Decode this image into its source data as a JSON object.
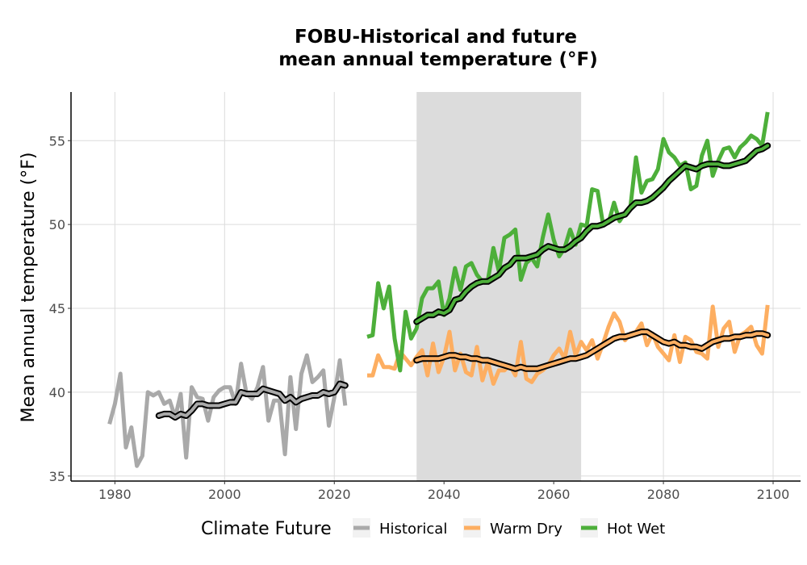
{
  "chart_data": {
    "type": "line",
    "title_lines": [
      "FOBU-Historical and future",
      "mean annual temperature (°F)"
    ],
    "xlabel": "",
    "ylabel": "Mean annual temperature (°F)",
    "xlim": [
      1972,
      2105
    ],
    "ylim": [
      34.7,
      57.9
    ],
    "xticks": [
      1980,
      2000,
      2020,
      2040,
      2060,
      2080,
      2100
    ],
    "yticks": [
      35,
      40,
      45,
      50,
      55
    ],
    "grid": true,
    "shaded_period": [
      2035,
      2065
    ],
    "legend": {
      "title": "Climate Future",
      "position": "bottom",
      "entries": [
        {
          "label": "Historical",
          "color": "#a9a9a9"
        },
        {
          "label": "Warm Dry",
          "color": "#fdae61"
        },
        {
          "label": "Hot Wet",
          "color": "#4daf3a"
        }
      ]
    },
    "series": [
      {
        "name": "Historical",
        "color": "#a9a9a9",
        "x": [
          1979,
          1980,
          1981,
          1982,
          1983,
          1984,
          1985,
          1986,
          1987,
          1988,
          1989,
          1990,
          1991,
          1992,
          1993,
          1994,
          1995,
          1996,
          1997,
          1998,
          1999,
          2000,
          2001,
          2002,
          2003,
          2004,
          2005,
          2006,
          2007,
          2008,
          2009,
          2010,
          2011,
          2012,
          2013,
          2014,
          2015,
          2016,
          2017,
          2018,
          2019,
          2020,
          2021,
          2022
        ],
        "y": [
          38.1,
          39.3,
          41.1,
          36.7,
          37.9,
          35.6,
          36.2,
          40.0,
          39.8,
          40.0,
          39.3,
          39.5,
          38.5,
          39.9,
          36.1,
          40.3,
          39.7,
          39.6,
          38.3,
          39.7,
          40.1,
          40.3,
          40.3,
          39.3,
          41.7,
          39.9,
          39.6,
          40.3,
          41.5,
          38.3,
          39.5,
          39.5,
          36.3,
          40.9,
          37.8,
          41.1,
          42.2,
          40.6,
          40.9,
          41.3,
          38.0,
          39.7,
          41.9,
          39.2
        ]
      },
      {
        "name": "Historical 10-yr average",
        "color": "#a9a9a9",
        "x": [
          1988,
          1989,
          1990,
          1991,
          1992,
          1993,
          1994,
          1995,
          1996,
          1997,
          1998,
          1999,
          2000,
          2001,
          2002,
          2003,
          2004,
          2005,
          2006,
          2007,
          2008,
          2009,
          2010,
          2011,
          2012,
          2013,
          2014,
          2015,
          2016,
          2017,
          2018,
          2019,
          2020,
          2021,
          2022
        ],
        "y": [
          38.6,
          38.7,
          38.7,
          38.5,
          38.7,
          38.6,
          38.9,
          39.3,
          39.3,
          39.2,
          39.2,
          39.2,
          39.3,
          39.4,
          39.4,
          40.0,
          39.9,
          39.9,
          39.9,
          40.2,
          40.1,
          40.0,
          39.9,
          39.5,
          39.7,
          39.4,
          39.6,
          39.7,
          39.8,
          39.8,
          40.0,
          39.9,
          40.0,
          40.5,
          40.4
        ]
      },
      {
        "name": "Warm Dry",
        "color": "#fdae61",
        "x": [
          2026,
          2027,
          2028,
          2029,
          2030,
          2031,
          2032,
          2033,
          2034,
          2035,
          2036,
          2037,
          2038,
          2039,
          2040,
          2041,
          2042,
          2043,
          2044,
          2045,
          2046,
          2047,
          2048,
          2049,
          2050,
          2051,
          2052,
          2053,
          2054,
          2055,
          2056,
          2057,
          2058,
          2059,
          2060,
          2061,
          2062,
          2063,
          2064,
          2065,
          2066,
          2067,
          2068,
          2069,
          2070,
          2071,
          2072,
          2073,
          2074,
          2075,
          2076,
          2077,
          2078,
          2079,
          2080,
          2081,
          2082,
          2083,
          2084,
          2085,
          2086,
          2087,
          2088,
          2089,
          2090,
          2091,
          2092,
          2093,
          2094,
          2095,
          2096,
          2097,
          2098,
          2099
        ],
        "y": [
          41.0,
          41.0,
          42.2,
          41.5,
          41.5,
          41.4,
          42.4,
          42.0,
          41.6,
          42.1,
          42.5,
          41.0,
          42.9,
          41.2,
          42.1,
          43.6,
          41.3,
          42.3,
          41.2,
          41.0,
          42.7,
          40.7,
          41.8,
          40.5,
          41.3,
          41.3,
          41.6,
          41.0,
          43.0,
          40.8,
          40.6,
          41.1,
          41.3,
          41.6,
          42.2,
          42.6,
          42.0,
          43.6,
          42.2,
          43.0,
          42.5,
          43.1,
          42.0,
          42.9,
          43.9,
          44.7,
          44.2,
          43.1,
          43.5,
          43.6,
          44.1,
          42.8,
          43.5,
          42.7,
          42.3,
          41.9,
          43.4,
          41.8,
          43.3,
          43.1,
          42.4,
          42.3,
          42.0,
          45.1,
          42.7,
          43.8,
          44.2,
          42.4,
          43.4,
          43.6,
          43.9,
          42.8,
          42.3,
          45.2
        ]
      },
      {
        "name": "Warm Dry 10-yr average",
        "color": "#fdae61",
        "x": [
          2035,
          2036,
          2037,
          2038,
          2039,
          2040,
          2041,
          2042,
          2043,
          2044,
          2045,
          2046,
          2047,
          2048,
          2049,
          2050,
          2051,
          2052,
          2053,
          2054,
          2055,
          2056,
          2057,
          2058,
          2059,
          2060,
          2061,
          2062,
          2063,
          2064,
          2065,
          2066,
          2067,
          2068,
          2069,
          2070,
          2071,
          2072,
          2073,
          2074,
          2075,
          2076,
          2077,
          2078,
          2079,
          2080,
          2081,
          2082,
          2083,
          2084,
          2085,
          2086,
          2087,
          2088,
          2089,
          2090,
          2091,
          2092,
          2093,
          2094,
          2095,
          2096,
          2097,
          2098,
          2099
        ],
        "y": [
          41.9,
          42.0,
          42.0,
          42.0,
          42.0,
          42.1,
          42.2,
          42.2,
          42.1,
          42.1,
          42.0,
          42.0,
          41.9,
          41.9,
          41.8,
          41.7,
          41.6,
          41.5,
          41.4,
          41.5,
          41.4,
          41.4,
          41.4,
          41.5,
          41.6,
          41.7,
          41.8,
          41.9,
          42.0,
          42.0,
          42.1,
          42.2,
          42.4,
          42.6,
          42.8,
          43.0,
          43.2,
          43.3,
          43.3,
          43.4,
          43.5,
          43.6,
          43.6,
          43.4,
          43.2,
          43.0,
          42.9,
          43.0,
          42.8,
          42.8,
          42.7,
          42.7,
          42.6,
          42.8,
          43.0,
          43.1,
          43.2,
          43.2,
          43.3,
          43.3,
          43.4,
          43.4,
          43.5,
          43.5,
          43.4
        ]
      },
      {
        "name": "Hot Wet",
        "color": "#4daf3a",
        "x": [
          2026,
          2027,
          2028,
          2029,
          2030,
          2031,
          2032,
          2033,
          2034,
          2035,
          2036,
          2037,
          2038,
          2039,
          2040,
          2041,
          2042,
          2043,
          2044,
          2045,
          2046,
          2047,
          2048,
          2049,
          2050,
          2051,
          2052,
          2053,
          2054,
          2055,
          2056,
          2057,
          2058,
          2059,
          2060,
          2061,
          2062,
          2063,
          2064,
          2065,
          2066,
          2067,
          2068,
          2069,
          2070,
          2071,
          2072,
          2073,
          2074,
          2075,
          2076,
          2077,
          2078,
          2079,
          2080,
          2081,
          2082,
          2083,
          2084,
          2085,
          2086,
          2087,
          2088,
          2089,
          2090,
          2091,
          2092,
          2093,
          2094,
          2095,
          2096,
          2097,
          2098,
          2099
        ],
        "y": [
          43.3,
          43.4,
          46.5,
          45.0,
          46.3,
          43.2,
          41.3,
          44.8,
          43.2,
          43.8,
          45.6,
          46.2,
          46.2,
          46.6,
          44.6,
          45.6,
          47.4,
          46.1,
          47.5,
          47.7,
          47.0,
          46.6,
          46.7,
          48.6,
          47.2,
          49.2,
          49.4,
          49.7,
          46.7,
          47.7,
          48.0,
          47.5,
          49.2,
          50.6,
          49.1,
          48.1,
          48.6,
          49.7,
          48.8,
          50.0,
          49.9,
          52.1,
          52.0,
          50.0,
          50.1,
          51.3,
          50.2,
          50.7,
          51.1,
          54.0,
          51.9,
          52.6,
          52.7,
          53.3,
          55.1,
          54.3,
          54.0,
          53.5,
          53.7,
          52.1,
          52.3,
          54.1,
          55.0,
          52.9,
          53.8,
          54.5,
          54.6,
          54.0,
          54.6,
          54.9,
          55.3,
          55.1,
          54.7,
          56.7
        ]
      },
      {
        "name": "Hot Wet 10-yr average",
        "color": "#4daf3a",
        "x": [
          2035,
          2036,
          2037,
          2038,
          2039,
          2040,
          2041,
          2042,
          2043,
          2044,
          2045,
          2046,
          2047,
          2048,
          2049,
          2050,
          2051,
          2052,
          2053,
          2054,
          2055,
          2056,
          2057,
          2058,
          2059,
          2060,
          2061,
          2062,
          2063,
          2064,
          2065,
          2066,
          2067,
          2068,
          2069,
          2070,
          2071,
          2072,
          2073,
          2074,
          2075,
          2076,
          2077,
          2078,
          2079,
          2080,
          2081,
          2082,
          2083,
          2084,
          2085,
          2086,
          2087,
          2088,
          2089,
          2090,
          2091,
          2092,
          2093,
          2094,
          2095,
          2096,
          2097,
          2098,
          2099
        ],
        "y": [
          44.2,
          44.4,
          44.6,
          44.6,
          44.8,
          44.7,
          44.9,
          45.5,
          45.6,
          46.0,
          46.3,
          46.5,
          46.6,
          46.6,
          46.8,
          47.0,
          47.4,
          47.6,
          48.0,
          48.0,
          48.0,
          48.1,
          48.2,
          48.5,
          48.7,
          48.6,
          48.5,
          48.5,
          48.7,
          49.0,
          49.2,
          49.6,
          49.9,
          49.9,
          50.0,
          50.2,
          50.4,
          50.5,
          50.6,
          51.0,
          51.3,
          51.3,
          51.4,
          51.6,
          51.9,
          52.2,
          52.6,
          52.9,
          53.2,
          53.5,
          53.4,
          53.3,
          53.5,
          53.6,
          53.6,
          53.6,
          53.5,
          53.5,
          53.6,
          53.7,
          53.8,
          54.1,
          54.4,
          54.5,
          54.7
        ]
      }
    ]
  }
}
